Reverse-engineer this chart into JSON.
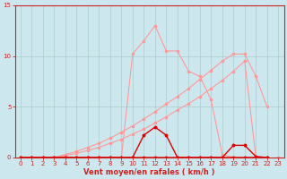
{
  "bg_color": "#cce8ee",
  "grid_color": "#aacccc",
  "axis_color": "#cc2222",
  "xlabel": "Vent moyen/en rafales ( km/h )",
  "xlim": [
    -0.5,
    23.5
  ],
  "ylim": [
    0,
    15
  ],
  "yticks": [
    0,
    5,
    10,
    15
  ],
  "xticks": [
    0,
    1,
    2,
    3,
    4,
    5,
    6,
    7,
    8,
    9,
    10,
    11,
    12,
    13,
    14,
    15,
    16,
    17,
    18,
    19,
    20,
    21,
    22,
    23
  ],
  "salmon_color": "#ff9999",
  "dark_red_color": "#dd0000",
  "lines_salmon": [
    {
      "x": [
        0,
        1,
        2,
        3,
        4,
        5,
        6,
        7,
        8,
        9,
        10,
        11,
        12,
        13,
        14,
        15,
        16,
        17,
        18,
        19,
        20,
        21,
        22
      ],
      "y": [
        0,
        0,
        0,
        0,
        0,
        0,
        0,
        0,
        0,
        0,
        10.2,
        11.5,
        13.0,
        10.5,
        10.5,
        8.5,
        8.0,
        5.7,
        0.3,
        0,
        0,
        0,
        0
      ]
    },
    {
      "x": [
        0,
        1,
        2,
        3,
        4,
        5,
        6,
        7,
        8,
        9,
        10,
        11,
        12,
        13,
        14,
        15,
        16,
        17,
        18,
        19,
        20,
        21,
        22
      ],
      "y": [
        0,
        0,
        0,
        0,
        0.2,
        0.4,
        0.7,
        1.0,
        1.4,
        1.8,
        2.3,
        2.8,
        3.4,
        4.0,
        4.7,
        5.3,
        6.0,
        6.8,
        7.6,
        8.5,
        9.5,
        0,
        0
      ]
    },
    {
      "x": [
        0,
        1,
        2,
        3,
        4,
        5,
        6,
        7,
        8,
        9,
        10,
        11,
        12,
        13,
        14,
        15,
        16,
        17,
        18,
        19,
        20,
        21,
        22
      ],
      "y": [
        0,
        0,
        0,
        0,
        0.3,
        0.6,
        1.0,
        1.4,
        1.9,
        2.5,
        3.1,
        3.8,
        4.5,
        5.3,
        6.0,
        6.8,
        7.7,
        8.6,
        9.5,
        10.2,
        10.2,
        8.0,
        5.0
      ]
    }
  ],
  "lines_dark": [
    {
      "x": [
        0,
        1,
        2,
        3,
        4,
        5,
        6,
        7,
        8,
        9,
        10,
        11,
        12,
        13,
        14,
        15,
        16,
        17,
        18,
        19,
        20,
        21,
        22
      ],
      "y": [
        0,
        0,
        0,
        0,
        0,
        0,
        0,
        0,
        0,
        0,
        0,
        2.2,
        3.0,
        2.2,
        0,
        0,
        0,
        0,
        0,
        0,
        0,
        0,
        0
      ]
    },
    {
      "x": [
        0,
        1,
        2,
        3,
        4,
        5,
        6,
        7,
        8,
        9,
        10,
        11,
        12,
        13,
        14,
        15,
        16,
        17,
        18,
        19,
        20,
        21,
        22
      ],
      "y": [
        0,
        0,
        0,
        0,
        0,
        0,
        0,
        0,
        0,
        0,
        0,
        0,
        0,
        0,
        0,
        0,
        0,
        0,
        0,
        1.2,
        1.2,
        0.1,
        0
      ]
    }
  ],
  "bottom_line": {
    "x": [
      0,
      1,
      2,
      3,
      4,
      5,
      6,
      7,
      8,
      9,
      10,
      11,
      12,
      13,
      14,
      15,
      16,
      17,
      18,
      19,
      20,
      21,
      22,
      23
    ],
    "y": [
      0,
      0,
      0,
      0,
      0,
      0,
      0,
      0,
      0,
      0,
      0,
      0,
      0,
      0,
      0,
      0,
      0,
      0,
      0,
      0,
      0,
      0,
      0,
      0
    ]
  }
}
